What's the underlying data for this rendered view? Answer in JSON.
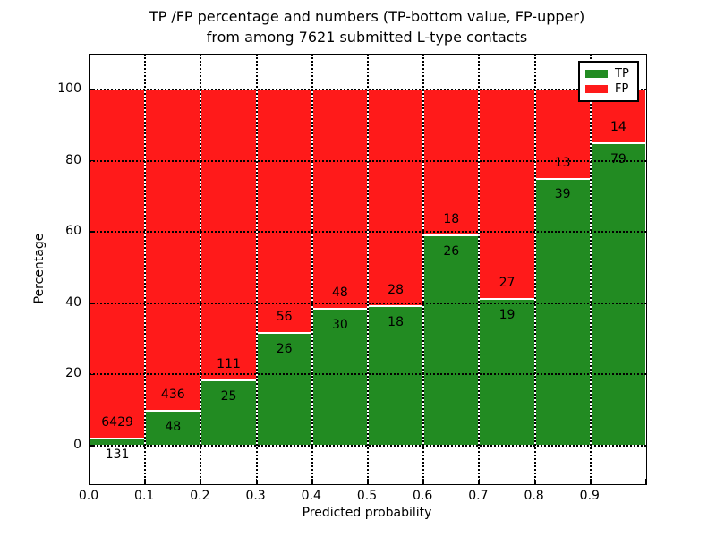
{
  "chart_data": {
    "type": "bar",
    "stacking": "percentage",
    "title_line1": "TP /FP percentage and numbers (TP-bottom value, FP-upper)",
    "title_line2": "from among 7621 submitted L-type contacts",
    "total_submitted": 7621,
    "xlabel": "Predicted probability",
    "ylabel": "Percentage",
    "xlim": [
      0.0,
      1.0
    ],
    "ylim": [
      -10.8,
      109.8
    ],
    "bin_width": 0.1,
    "grid": true,
    "categories": [
      "0.0-0.1",
      "0.1-0.2",
      "0.2-0.3",
      "0.3-0.4",
      "0.4-0.5",
      "0.5-0.6",
      "0.6-0.7",
      "0.7-0.8",
      "0.8-0.9",
      "0.9-1.0"
    ],
    "x_tick_labels": [
      "0.0",
      "0.1",
      "0.2",
      "0.3",
      "0.4",
      "0.5",
      "0.6",
      "0.7",
      "0.8",
      "0.9"
    ],
    "y_ticks": [
      0,
      20,
      40,
      60,
      80,
      100
    ],
    "y_tick_labels": [
      "0",
      "20",
      "40",
      "60",
      "80",
      "100"
    ],
    "series": [
      {
        "name": "TP",
        "color": "#228B22",
        "counts": [
          131,
          48,
          25,
          26,
          30,
          18,
          26,
          19,
          39,
          79
        ],
        "pct": [
          2.0,
          9.9,
          18.4,
          31.7,
          38.5,
          39.1,
          59.1,
          41.3,
          75.0,
          84.9
        ]
      },
      {
        "name": "FP",
        "color": "#FF1A1A",
        "counts": [
          6429,
          436,
          111,
          56,
          48,
          28,
          18,
          27,
          13,
          14
        ],
        "pct": [
          98.0,
          90.1,
          81.6,
          68.3,
          61.5,
          60.9,
          40.9,
          58.7,
          25.0,
          15.1
        ]
      }
    ],
    "legend": {
      "position": "upper right",
      "entries": [
        {
          "label": "TP",
          "color": "#228B22"
        },
        {
          "label": "FP",
          "color": "#FF1A1A"
        }
      ]
    },
    "colors": {
      "tp_green": "#228B22",
      "fp_red": "#FF1A1A",
      "bar_edge": "#ffffff",
      "grid": "#000000",
      "background": "#ffffff"
    }
  }
}
